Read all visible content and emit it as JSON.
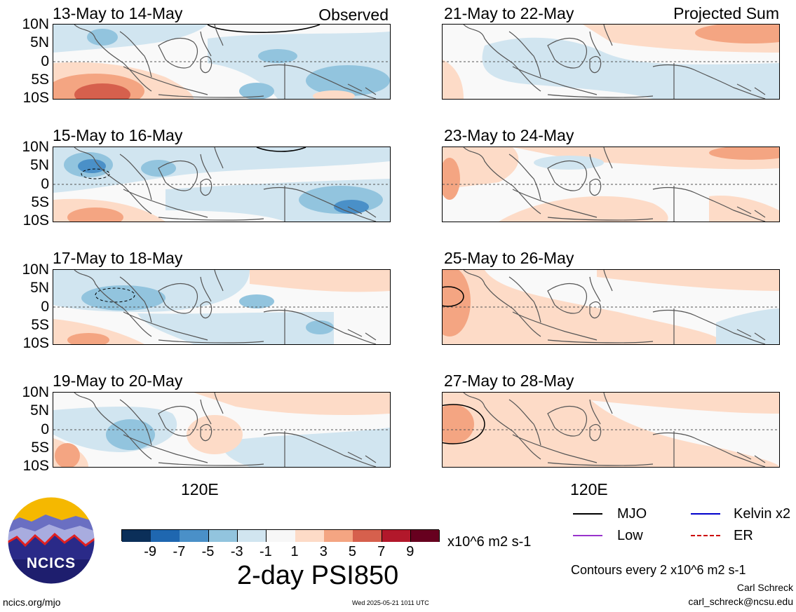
{
  "panels": [
    {
      "title": "13-May to 14-May",
      "corner": "Observed",
      "variant": 0
    },
    {
      "title": "15-May to 16-May",
      "corner": "",
      "variant": 1
    },
    {
      "title": "17-May to 18-May",
      "corner": "",
      "variant": 2
    },
    {
      "title": "19-May to 20-May",
      "corner": "",
      "variant": 3
    },
    {
      "title": "21-May to 22-May",
      "corner": "Projected Sum",
      "variant": 4
    },
    {
      "title": "23-May to 24-May",
      "corner": "",
      "variant": 5
    },
    {
      "title": "25-May to 26-May",
      "corner": "",
      "variant": 6
    },
    {
      "title": "27-May to 28-May",
      "corner": "",
      "variant": 7
    }
  ],
  "lat_labels": [
    "10N",
    "5N",
    "0",
    "5S",
    "10S"
  ],
  "lon_label": "120E",
  "colorbar": {
    "colors": [
      "#0b2f59",
      "#1f67b0",
      "#4a90c8",
      "#92c4de",
      "#d1e5f0",
      "#f7f7f7",
      "#fddbc7",
      "#f4a582",
      "#d6604d",
      "#b2182b",
      "#67001f"
    ],
    "ticks": [
      "-9",
      "-7",
      "-5",
      "-3",
      "-1",
      "1",
      "3",
      "5",
      "7",
      "9"
    ],
    "units": "x10^6 m2 s-1"
  },
  "main_title": "2-day PSI850",
  "legend": [
    {
      "label": "MJO",
      "color": "#000000",
      "style": "solid"
    },
    {
      "label": "Kelvin x2",
      "color": "#0000cc",
      "style": "solid"
    },
    {
      "label": "Low",
      "color": "#9933cc",
      "style": "solid"
    },
    {
      "label": "ER",
      "color": "#cc0000",
      "style": "dashed"
    }
  ],
  "contour_note": "Contours every 2 x10^6 m2 s-1",
  "author": "Carl Schreck",
  "email": "carl_schreck@ncsu.edu",
  "logo_text": "NCICS",
  "site": "ncics.org/mjo",
  "timestamp": "Wed 2025-05-21 1011 UTC"
}
